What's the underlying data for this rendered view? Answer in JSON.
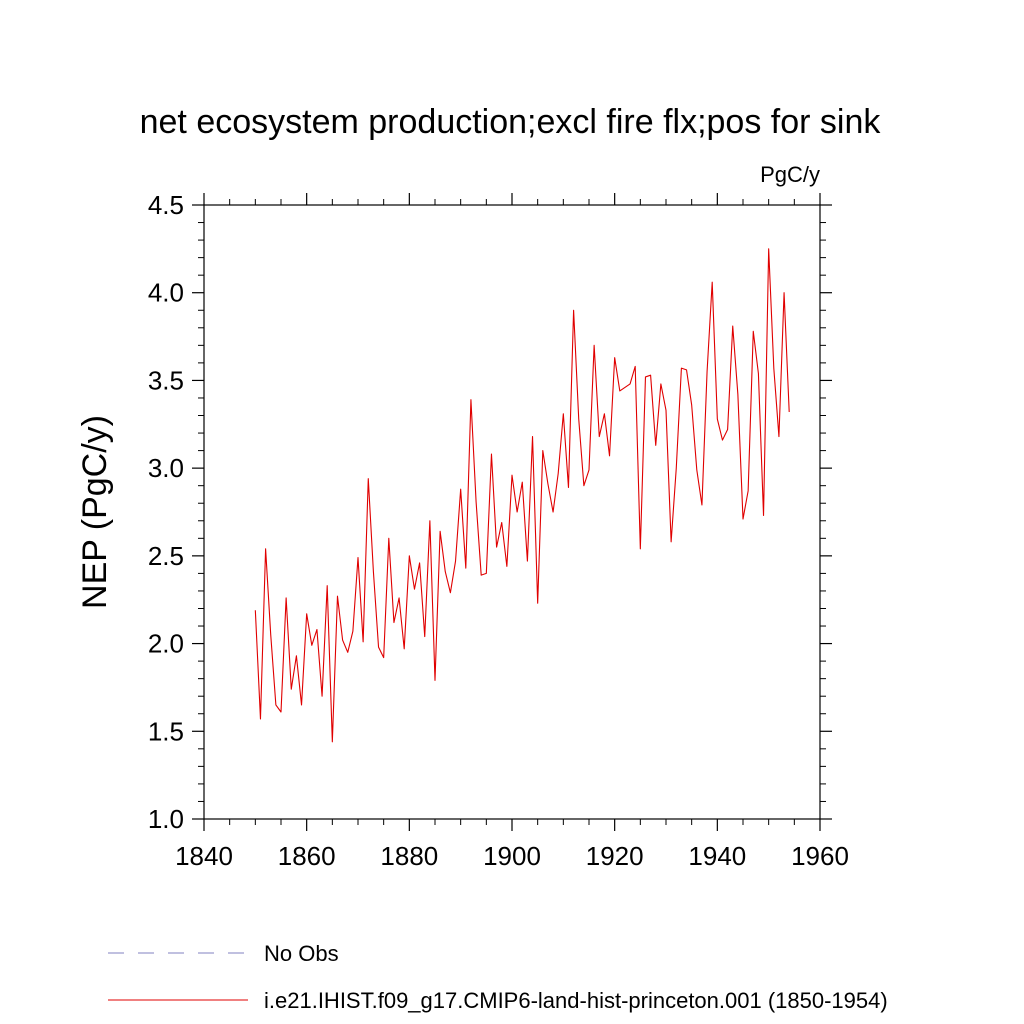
{
  "chart_data": {
    "type": "line",
    "title": "net ecosystem production;excl fire flx;pos for sink",
    "units": "PgC/y",
    "ylabel": "NEP  (PgC/y)",
    "xlabel": "",
    "xlim": [
      1840,
      1960
    ],
    "ylim": [
      1.0,
      4.5
    ],
    "x_ticks": [
      "1840",
      "1860",
      "1880",
      "1900",
      "1920",
      "1940",
      "1960"
    ],
    "y_ticks": [
      "1.0",
      "1.5",
      "2.0",
      "2.5",
      "3.0",
      "3.5",
      "4.0",
      "4.5"
    ],
    "grid": false,
    "legend_position": "bottom-left",
    "legend": [
      {
        "label": "No Obs",
        "color": "#8080c0",
        "style": "dashed"
      },
      {
        "label": "i.e21.IHIST.f09_g17.CMIP6-land-hist-princeton.001 (1850-1954)",
        "color": "#e00000",
        "style": "solid"
      }
    ],
    "series": [
      {
        "name": "i.e21.IHIST.f09_g17.CMIP6-land-hist-princeton.001 (1850-1954)",
        "color": "#e00000",
        "x_start": 1850,
        "values": [
          2.19,
          1.57,
          2.54,
          2.05,
          1.65,
          1.61,
          2.26,
          1.74,
          1.93,
          1.65,
          2.17,
          1.99,
          2.08,
          1.7,
          2.33,
          1.44,
          2.27,
          2.02,
          1.95,
          2.07,
          2.49,
          2.01,
          2.94,
          2.41,
          1.98,
          1.92,
          2.6,
          2.12,
          2.26,
          1.97,
          2.5,
          2.31,
          2.46,
          2.04,
          2.7,
          1.79,
          2.64,
          2.41,
          2.29,
          2.47,
          2.88,
          2.43,
          3.39,
          2.81,
          2.39,
          2.4,
          3.08,
          2.55,
          2.69,
          2.44,
          2.96,
          2.75,
          2.92,
          2.47,
          3.18,
          2.23,
          3.1,
          2.91,
          2.75,
          2.97,
          3.31,
          2.89,
          3.9,
          3.28,
          2.9,
          2.99,
          3.7,
          3.18,
          3.31,
          3.07,
          3.63,
          3.44,
          3.46,
          3.48,
          3.58,
          2.54,
          3.52,
          3.53,
          3.13,
          3.48,
          3.33,
          2.58,
          3.0,
          3.57,
          3.56,
          3.36,
          2.99,
          2.79,
          3.55,
          4.06,
          3.28,
          3.16,
          3.22,
          3.81,
          3.42,
          2.71,
          2.87,
          3.78,
          3.54,
          2.73,
          4.25,
          3.57,
          3.18,
          4.0,
          3.32
        ]
      }
    ]
  }
}
